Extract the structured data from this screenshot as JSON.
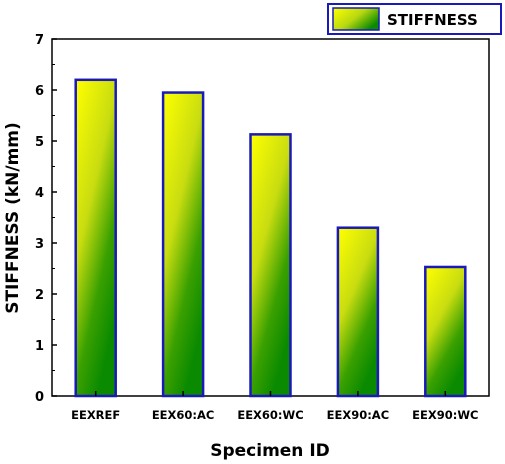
{
  "chart_data": {
    "type": "bar",
    "categories": [
      "EEXREF",
      "EEX60:AC",
      "EEX60:WC",
      "EEX90:AC",
      "EEX90:WC"
    ],
    "series": [
      {
        "name": "STIFFNESS",
        "values": [
          6.2,
          5.95,
          5.13,
          3.3,
          2.53
        ]
      }
    ],
    "xlabel": "Specimen ID",
    "ylabel": "STIFFNESS (kN/mm)",
    "ylim": [
      0,
      7
    ],
    "yticks": [
      "0",
      "1",
      "2",
      "3",
      "4",
      "5",
      "6",
      "7"
    ],
    "grid": false,
    "legend_position": "top-right",
    "colors": {
      "bar_gradient_top": "#ffff00",
      "bar_gradient_bottom": "#0a8a00",
      "bar_border": "#1a1ab8",
      "axis": "#000000"
    }
  }
}
